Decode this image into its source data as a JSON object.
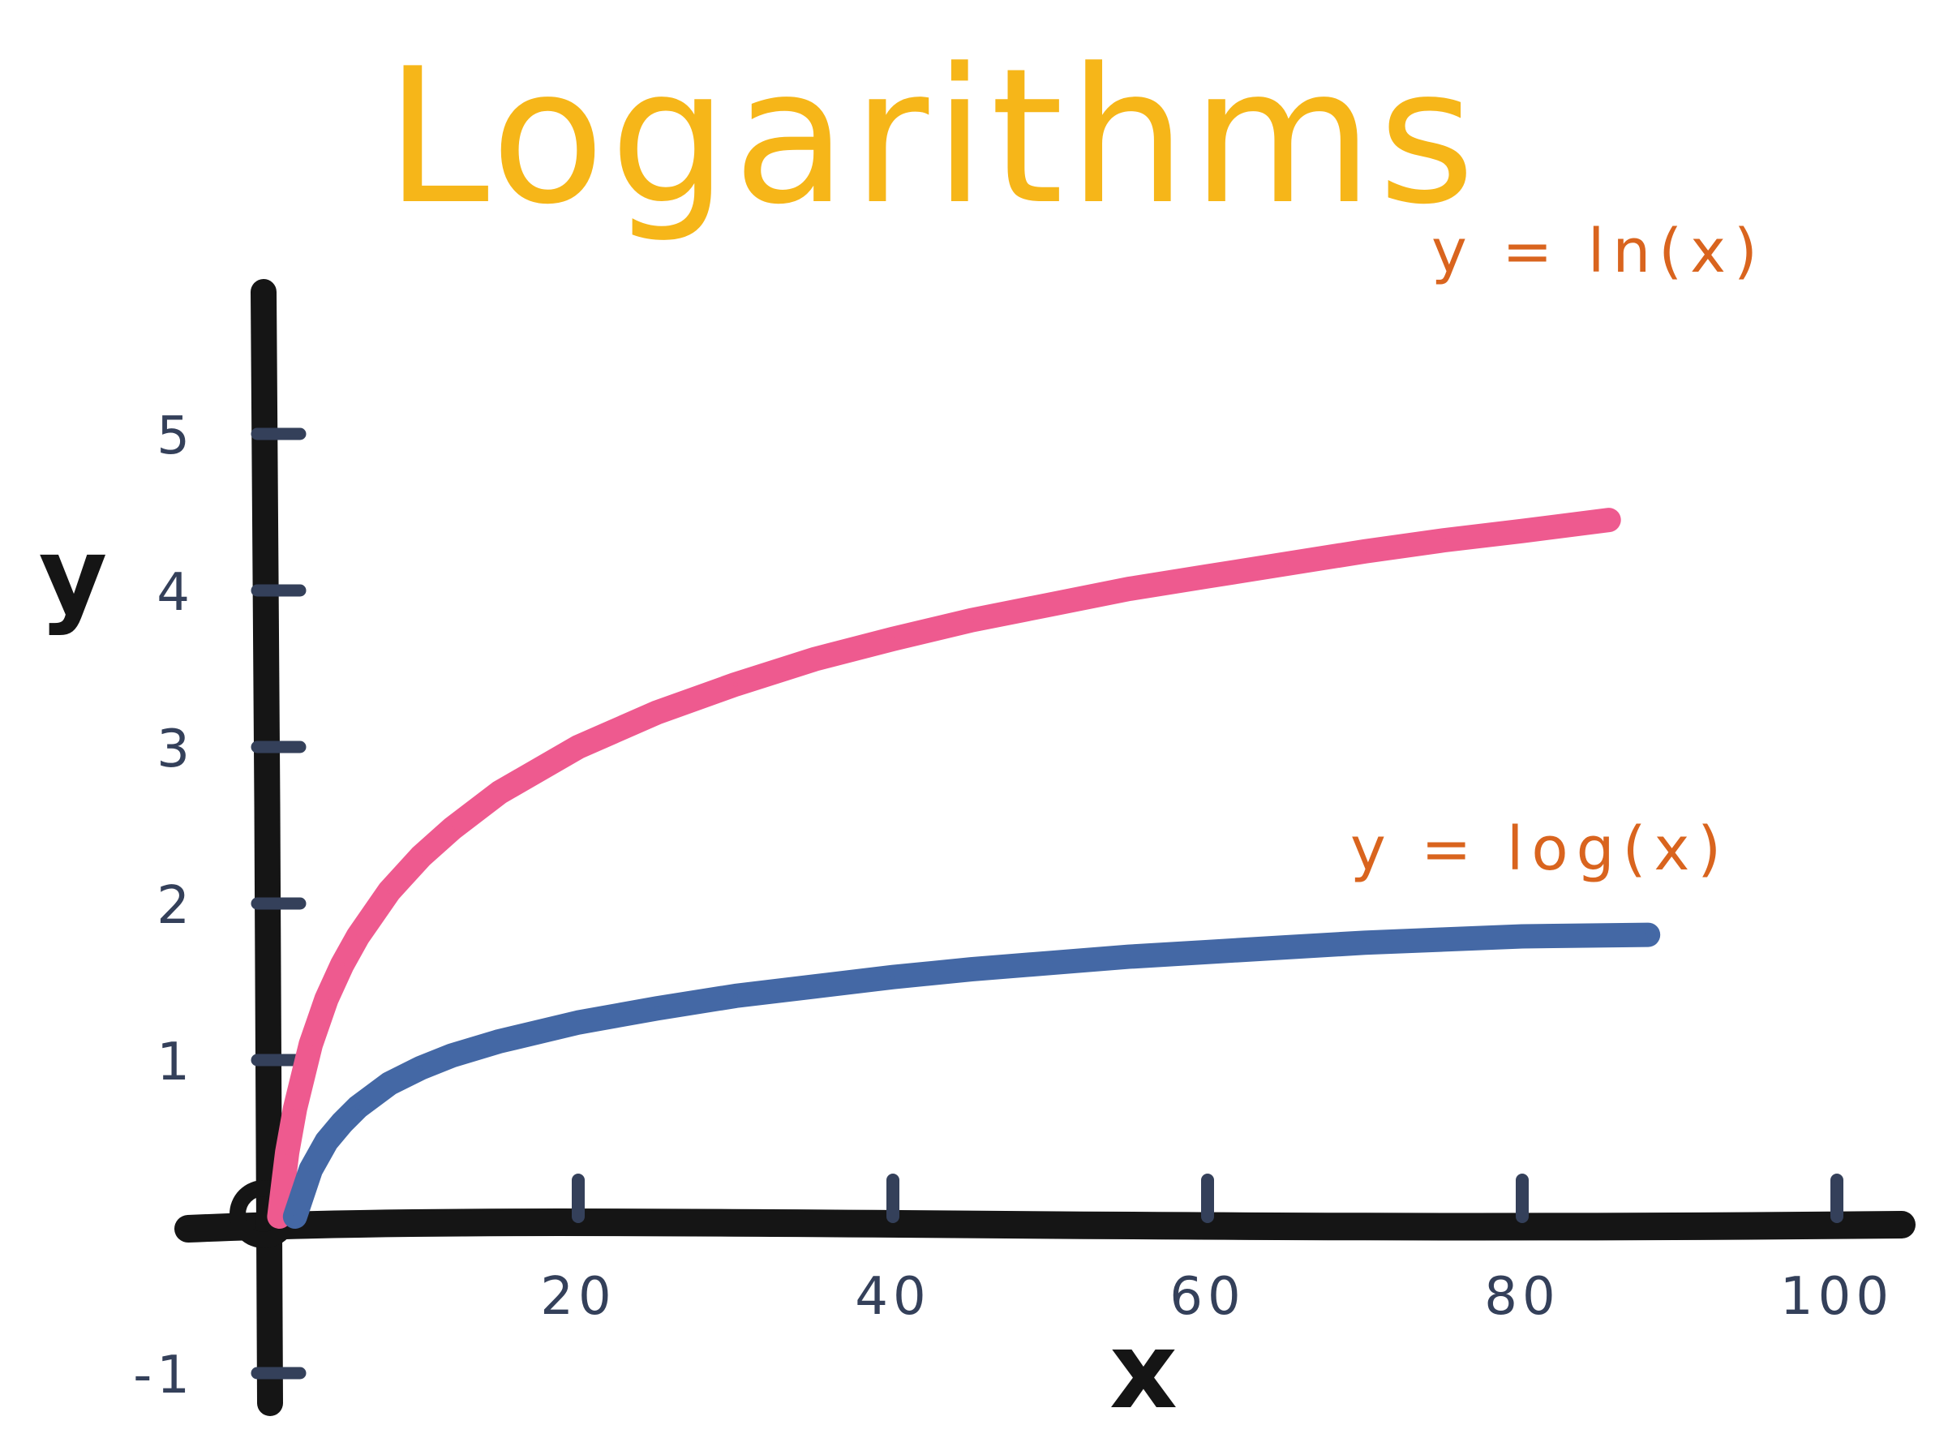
{
  "chart_data": {
    "type": "line",
    "title": "Logarithms",
    "xlabel": "x",
    "ylabel": "y",
    "xlim": [
      -3,
      105
    ],
    "ylim": [
      -1.2,
      6.1
    ],
    "x_ticks": [
      20,
      40,
      60,
      80,
      100
    ],
    "x_tick_labels": [
      "20",
      "40",
      "60",
      "80",
      "100"
    ],
    "y_ticks": [
      -1,
      1,
      2,
      3,
      4,
      5
    ],
    "y_tick_labels": [
      "-1",
      "1",
      "2",
      "3",
      "4",
      "5"
    ],
    "grid": false,
    "series": [
      {
        "name": "y = ln(x)",
        "label_text": "y = ln(x)",
        "color": "#ee5a8f",
        "x": [
          1,
          1.5,
          2,
          3,
          4,
          5,
          6,
          8,
          10,
          12,
          15,
          20,
          25,
          30,
          35,
          40,
          45,
          50,
          55,
          60,
          65,
          70,
          75,
          80,
          85.5
        ],
        "y": [
          0.0,
          0.41,
          0.69,
          1.1,
          1.39,
          1.61,
          1.79,
          2.08,
          2.3,
          2.48,
          2.71,
          3.0,
          3.22,
          3.4,
          3.56,
          3.69,
          3.81,
          3.91,
          4.01,
          4.09,
          4.17,
          4.25,
          4.32,
          4.38,
          4.45
        ]
      },
      {
        "name": "y = log(x)",
        "label_text": "y = log(x)",
        "color": "#4468a5",
        "x": [
          2,
          3,
          4,
          5,
          6,
          8,
          10,
          12,
          15,
          20,
          25,
          30,
          35,
          40,
          45,
          50,
          55,
          60,
          65,
          70,
          75,
          80,
          88
        ],
        "y": [
          0.0,
          0.3,
          0.48,
          0.6,
          0.7,
          0.85,
          0.95,
          1.03,
          1.12,
          1.24,
          1.33,
          1.41,
          1.47,
          1.53,
          1.58,
          1.62,
          1.66,
          1.69,
          1.72,
          1.75,
          1.77,
          1.79,
          1.8
        ]
      }
    ]
  },
  "colors": {
    "title": "#f6b619",
    "curve_label": "#d9641e",
    "axis": "#151515",
    "tick": "#34405a"
  }
}
